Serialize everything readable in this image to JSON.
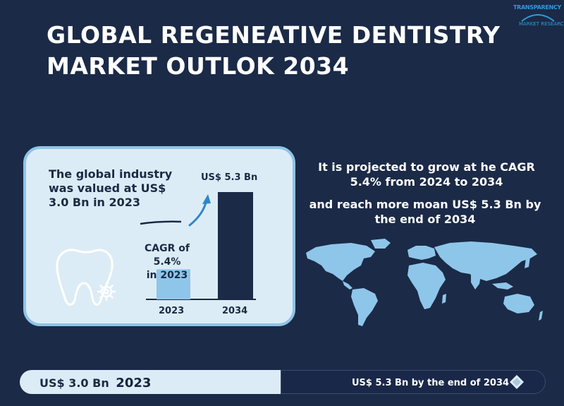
{
  "logo": {
    "line1": "TRANSPARENCY",
    "line2": "MARKET RESEARCH"
  },
  "title": {
    "line1": "GLOBAL REGENEATIVE DENTISTRY",
    "line2": "MARKET OUTLOK 2034"
  },
  "card": {
    "text_line1": "The global industry",
    "text_line2": "was valued at US$",
    "text_line3": "3.0 Bn in 2023",
    "cagr_line1": "CAGR of 5.4%",
    "cagr_line2": "in 2023",
    "bar_top_label": "US$ 5.3 Bn",
    "year_2023": "2023",
    "year_2034": "2034"
  },
  "chart_data": {
    "type": "bar",
    "categories": [
      "2023",
      "2034"
    ],
    "values": [
      3.0,
      5.3
    ],
    "title": "",
    "xlabel": "",
    "ylabel": "",
    "colors": [
      "#8ec6ea",
      "#1b2a47"
    ]
  },
  "projection": {
    "line1": "It is projected to grow at he CAGR",
    "line2": "5.4% from 2024 to 2034",
    "line3": "and reach more moan US$ 5.3 Bn by",
    "line4": "the end of 2034"
  },
  "footer": {
    "left_value": "US$ 3.0 Bn",
    "left_year": "2023",
    "right_text": "US$ 5.3 Bn by the end of 2034"
  },
  "colors": {
    "background": "#1b2a47",
    "accent_light": "#8ec6ea",
    "accent_blue": "#2f86c8",
    "card_bg": "#dcecf6"
  }
}
